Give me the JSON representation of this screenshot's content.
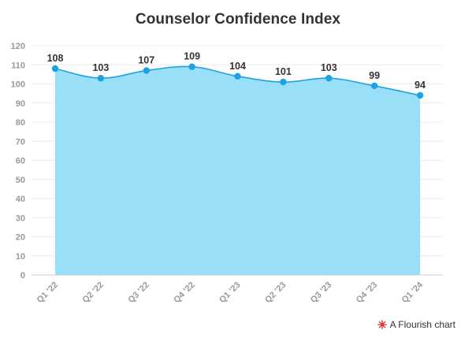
{
  "chart_data": {
    "type": "area",
    "title": "Counselor Confidence Index",
    "categories": [
      "Q1 '22",
      "Q2 '22",
      "Q3 '22",
      "Q4 '22",
      "Q1 '23",
      "Q2 '23",
      "Q3 '23",
      "Q4 '23",
      "Q1 '24"
    ],
    "series": [
      {
        "values": [
          108,
          103,
          107,
          109,
          104,
          101,
          103,
          99,
          94
        ],
        "color": "#1aa3e0",
        "fill": "#9adff8"
      }
    ],
    "data_labels": [
      "108",
      "103",
      "107",
      "109",
      "104",
      "101",
      "103",
      "99",
      "94"
    ],
    "ylim": [
      0,
      120
    ],
    "yticks": [
      0,
      10,
      20,
      30,
      40,
      50,
      60,
      70,
      80,
      90,
      100,
      110,
      120
    ],
    "ytick_labels": [
      "0",
      "10",
      "20",
      "30",
      "40",
      "50",
      "60",
      "70",
      "80",
      "90",
      "100",
      "110",
      "120"
    ],
    "xlabel": "",
    "ylabel": "",
    "grid": true,
    "legend": false
  },
  "credit": {
    "text": "A Flourish chart",
    "icon": "flourish-logo-icon"
  }
}
